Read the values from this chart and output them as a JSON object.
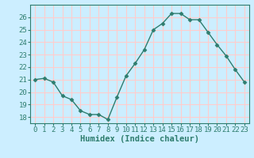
{
  "x": [
    0,
    1,
    2,
    3,
    4,
    5,
    6,
    7,
    8,
    9,
    10,
    11,
    12,
    13,
    14,
    15,
    16,
    17,
    18,
    19,
    20,
    21,
    22,
    23
  ],
  "y": [
    21.0,
    21.1,
    20.8,
    19.7,
    19.4,
    18.5,
    18.2,
    18.2,
    17.8,
    19.6,
    21.3,
    22.3,
    23.4,
    25.0,
    25.5,
    26.3,
    26.3,
    25.8,
    25.8,
    24.8,
    23.8,
    22.9,
    21.8,
    20.8
  ],
  "line_color": "#2e7d6e",
  "marker": "D",
  "marker_size": 2.5,
  "bg_color": "#cceeff",
  "grid_color": "#ffcccc",
  "xlabel": "Humidex (Indice chaleur)",
  "xlabel_fontsize": 7.5,
  "tick_fontsize": 6.5,
  "ylim": [
    17.5,
    27.0
  ],
  "yticks": [
    18,
    19,
    20,
    21,
    22,
    23,
    24,
    25,
    26
  ],
  "xticks": [
    0,
    1,
    2,
    3,
    4,
    5,
    6,
    7,
    8,
    9,
    10,
    11,
    12,
    13,
    14,
    15,
    16,
    17,
    18,
    19,
    20,
    21,
    22,
    23
  ],
  "xlim": [
    -0.5,
    23.5
  ]
}
